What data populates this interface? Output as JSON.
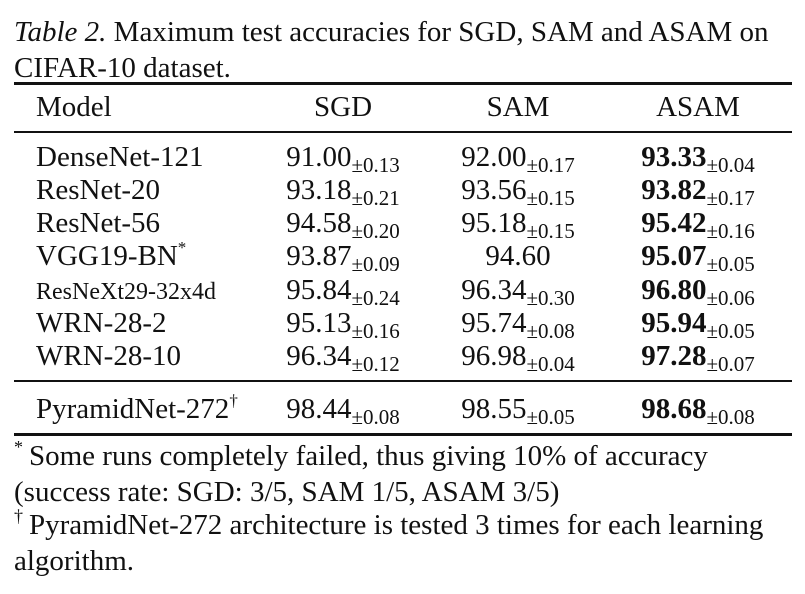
{
  "caption": {
    "label": "Table 2.",
    "text": "Maximum test accuracies for SGD, SAM and ASAM on CIFAR-10 dataset."
  },
  "table": {
    "headers": [
      "Model",
      "SGD",
      "SAM",
      "ASAM"
    ],
    "rows": [
      {
        "model": "DenseNet-121",
        "sgd": "91.00",
        "sgd_std": "±0.13",
        "sam": "92.00",
        "sam_std": "±0.17",
        "asam": "93.33",
        "asam_std": "±0.04"
      },
      {
        "model": "ResNet-20",
        "sgd": "93.18",
        "sgd_std": "±0.21",
        "sam": "93.56",
        "sam_std": "±0.15",
        "asam": "93.82",
        "asam_std": "±0.17"
      },
      {
        "model": "ResNet-56",
        "sgd": "94.58",
        "sgd_std": "±0.20",
        "sam": "95.18",
        "sam_std": "±0.15",
        "asam": "95.42",
        "asam_std": "±0.16"
      },
      {
        "model": "VGG19-BN",
        "model_mark": "*",
        "sgd": "93.87",
        "sgd_std": "±0.09",
        "sam": "94.60",
        "sam_std": "",
        "asam": "95.07",
        "asam_std": "±0.05"
      },
      {
        "model": "ResNeXt29-32x4d",
        "sgd": "95.84",
        "sgd_std": "±0.24",
        "sam": "96.34",
        "sam_std": "±0.30",
        "asam": "96.80",
        "asam_std": "±0.06"
      },
      {
        "model": "WRN-28-2",
        "sgd": "95.13",
        "sgd_std": "±0.16",
        "sam": "95.74",
        "sam_std": "±0.08",
        "asam": "95.94",
        "asam_std": "±0.05"
      },
      {
        "model": "WRN-28-10",
        "sgd": "96.34",
        "sgd_std": "±0.12",
        "sam": "96.98",
        "sam_std": "±0.04",
        "asam": "97.28",
        "asam_std": "±0.07"
      }
    ],
    "last_row": {
      "model": "PyramidNet-272",
      "model_mark": "†",
      "sgd": "98.44",
      "sgd_std": "±0.08",
      "sam": "98.55",
      "sam_std": "±0.05",
      "asam": "98.68",
      "asam_std": "±0.08"
    }
  },
  "footnotes": [
    {
      "mark": "*",
      "text": "Some runs completely failed, thus giving 10% of accuracy (success rate: SGD: 3/5, SAM 1/5, ASAM 3/5)"
    },
    {
      "mark": "†",
      "text": "PyramidNet-272 architecture is tested 3 times for each learning algorithm."
    }
  ]
}
